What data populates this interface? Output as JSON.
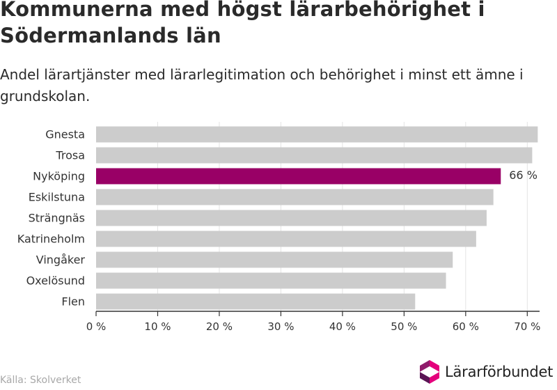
{
  "title": "Kommunerna med högst lärarbehörighet i Södermanlands län",
  "subtitle": "Andel lärartjänster med lärarlegitimation och behörighet i minst ett ämne i grundskolan.",
  "source": "Källa: Skolverket",
  "logo": {
    "text": "Lärarförbundet",
    "icon": "lararforbundet-logo-icon",
    "colors": [
      "#e4007c",
      "#8f1b6b",
      "#5a1454"
    ]
  },
  "chart_data": {
    "type": "bar",
    "orientation": "horizontal",
    "categories": [
      "Gnesta",
      "Trosa",
      "Nyköping",
      "Eskilstuna",
      "Strängnäs",
      "Katrineholm",
      "Vingåker",
      "Oxelösund",
      "Flen"
    ],
    "values": [
      71.7,
      70.8,
      65.7,
      64.5,
      63.4,
      61.7,
      57.9,
      56.8,
      51.8
    ],
    "highlight": {
      "category": "Nyköping",
      "label": "66 %"
    },
    "xlim": [
      0,
      72
    ],
    "xticks": [
      0,
      10,
      20,
      30,
      40,
      50,
      60,
      70
    ],
    "xtick_labels": [
      "0 %",
      "10 %",
      "20 %",
      "30 %",
      "40 %",
      "50 %",
      "60 %",
      "70 %"
    ],
    "grid": true,
    "colors": {
      "bar": "#cccccc",
      "highlight": "#990066",
      "grid": "#e3e3e3",
      "axis": "#333333",
      "text": "#333333"
    }
  }
}
